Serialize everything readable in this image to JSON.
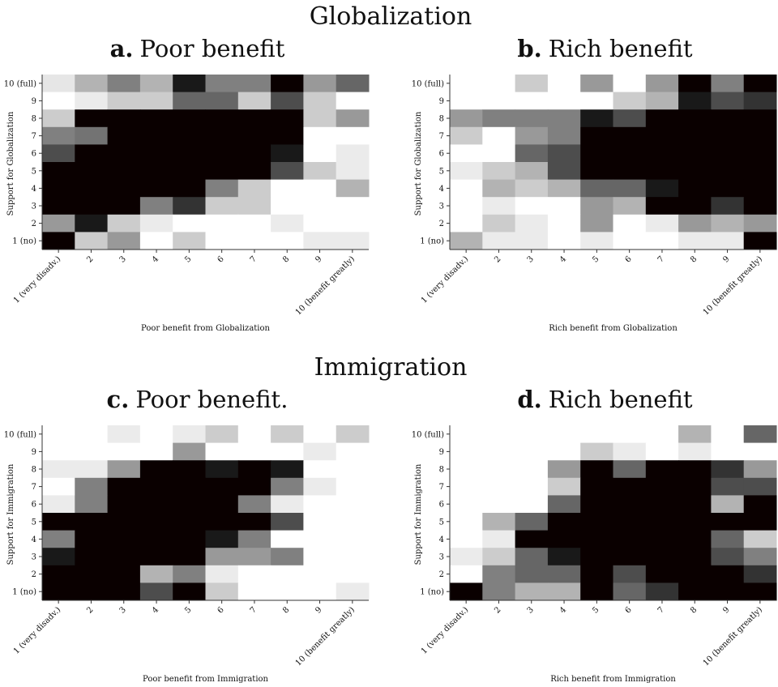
{
  "sections": [
    {
      "title": "Globalization"
    },
    {
      "title": "Immigration"
    }
  ],
  "chart_data": [
    {
      "type": "heatmap",
      "label": "a.",
      "title": "Poor benefit",
      "xlabel": "Poor benefit from Globalization",
      "ylabel": "Support for Globalization",
      "x_categories": [
        "1 (very disadv.)",
        "2",
        "3",
        "4",
        "5",
        "6",
        "7",
        "8",
        "9",
        "10 (benefit greatly)"
      ],
      "y_categories": [
        "10 (full)",
        "9",
        "8",
        "7",
        "6",
        "5",
        "4",
        "3",
        "2",
        "1 (no)"
      ],
      "values": [
        [
          10,
          30,
          50,
          30,
          90,
          50,
          50,
          100,
          40,
          60
        ],
        [
          0,
          8,
          20,
          20,
          60,
          60,
          20,
          70,
          20,
          0
        ],
        [
          20,
          100,
          100,
          100,
          100,
          100,
          100,
          100,
          20,
          40
        ],
        [
          50,
          55,
          100,
          100,
          100,
          100,
          100,
          100,
          0,
          0
        ],
        [
          70,
          100,
          100,
          100,
          100,
          100,
          100,
          90,
          0,
          8
        ],
        [
          100,
          100,
          100,
          100,
          100,
          100,
          100,
          70,
          20,
          8
        ],
        [
          100,
          100,
          100,
          100,
          100,
          50,
          20,
          0,
          0,
          30
        ],
        [
          100,
          100,
          100,
          50,
          80,
          20,
          20,
          0,
          0,
          0
        ],
        [
          40,
          90,
          20,
          8,
          0,
          0,
          0,
          8,
          0,
          0
        ],
        [
          100,
          20,
          40,
          0,
          20,
          0,
          0,
          0,
          8,
          8
        ]
      ]
    },
    {
      "type": "heatmap",
      "label": "b.",
      "title": "Rich benefit",
      "xlabel": "Rich benefit from Globalization",
      "ylabel": "Support for Globalization",
      "x_categories": [
        "1 (very disadv.)",
        "2",
        "3",
        "4",
        "5",
        "6",
        "7",
        "8",
        "9",
        "10 (benefit greatly)"
      ],
      "y_categories": [
        "10 (full)",
        "9",
        "8",
        "7",
        "6",
        "5",
        "4",
        "3",
        "2",
        "1 (no)"
      ],
      "values": [
        [
          0,
          0,
          20,
          0,
          40,
          0,
          40,
          100,
          50,
          100
        ],
        [
          0,
          0,
          0,
          0,
          0,
          20,
          30,
          90,
          70,
          80
        ],
        [
          40,
          50,
          50,
          50,
          90,
          70,
          100,
          100,
          100,
          100
        ],
        [
          20,
          0,
          40,
          50,
          100,
          100,
          100,
          100,
          100,
          100
        ],
        [
          0,
          0,
          60,
          70,
          100,
          100,
          100,
          100,
          100,
          100
        ],
        [
          8,
          20,
          30,
          70,
          100,
          100,
          100,
          100,
          100,
          100
        ],
        [
          0,
          30,
          20,
          30,
          60,
          60,
          90,
          100,
          100,
          100
        ],
        [
          0,
          8,
          0,
          0,
          40,
          30,
          100,
          100,
          80,
          100
        ],
        [
          0,
          20,
          8,
          0,
          40,
          0,
          8,
          40,
          30,
          40
        ],
        [
          30,
          8,
          8,
          0,
          8,
          0,
          0,
          8,
          8,
          100
        ]
      ]
    },
    {
      "type": "heatmap",
      "label": "c.",
      "title": "Poor benefit.",
      "xlabel": "Poor benefit from Immigration",
      "ylabel": "Support for Immigration",
      "x_categories": [
        "1 (very disadv.)",
        "2",
        "3",
        "4",
        "5",
        "6",
        "7",
        "8",
        "9",
        "10 (benefit greatly)"
      ],
      "y_categories": [
        "10 (full)",
        "9",
        "8",
        "7",
        "6",
        "5",
        "4",
        "3",
        "2",
        "1 (no)"
      ],
      "values": [
        [
          0,
          0,
          8,
          0,
          8,
          20,
          0,
          20,
          0,
          20
        ],
        [
          0,
          0,
          0,
          0,
          40,
          0,
          0,
          0,
          8,
          0
        ],
        [
          8,
          8,
          40,
          100,
          100,
          90,
          100,
          90,
          0,
          0
        ],
        [
          0,
          50,
          100,
          100,
          100,
          100,
          100,
          50,
          8,
          0
        ],
        [
          8,
          50,
          100,
          100,
          100,
          100,
          50,
          8,
          0,
          0
        ],
        [
          100,
          100,
          100,
          100,
          100,
          100,
          100,
          70,
          0,
          0
        ],
        [
          50,
          100,
          100,
          100,
          100,
          90,
          50,
          0,
          0,
          0
        ],
        [
          90,
          100,
          100,
          100,
          100,
          40,
          40,
          50,
          0,
          0
        ],
        [
          100,
          100,
          100,
          30,
          50,
          8,
          0,
          0,
          0,
          0
        ],
        [
          100,
          100,
          100,
          70,
          100,
          20,
          0,
          0,
          0,
          8
        ]
      ]
    },
    {
      "type": "heatmap",
      "label": "d.",
      "title": "Rich benefit",
      "xlabel": "Rich benefit from Immigration",
      "ylabel": "Support for Immigration",
      "x_categories": [
        "1 (very disadv.)",
        "2",
        "3",
        "4",
        "5",
        "6",
        "7",
        "8",
        "9",
        "10 (benefit greatly)"
      ],
      "y_categories": [
        "10 (full)",
        "9",
        "8",
        "7",
        "6",
        "5",
        "4",
        "3",
        "2",
        "1 (no)"
      ],
      "values": [
        [
          0,
          0,
          0,
          0,
          0,
          0,
          0,
          30,
          0,
          60
        ],
        [
          0,
          0,
          0,
          0,
          20,
          8,
          0,
          8,
          0,
          0
        ],
        [
          0,
          0,
          0,
          40,
          100,
          60,
          100,
          100,
          80,
          40
        ],
        [
          0,
          0,
          0,
          20,
          100,
          100,
          100,
          100,
          70,
          70
        ],
        [
          0,
          0,
          0,
          60,
          100,
          100,
          100,
          100,
          30,
          100
        ],
        [
          0,
          30,
          60,
          100,
          100,
          100,
          100,
          100,
          100,
          100
        ],
        [
          0,
          8,
          100,
          100,
          100,
          100,
          100,
          100,
          60,
          20
        ],
        [
          8,
          20,
          60,
          90,
          100,
          100,
          100,
          100,
          70,
          50
        ],
        [
          0,
          50,
          60,
          60,
          100,
          70,
          100,
          100,
          100,
          80
        ],
        [
          100,
          50,
          30,
          30,
          100,
          60,
          80,
          100,
          100,
          100
        ]
      ]
    }
  ]
}
